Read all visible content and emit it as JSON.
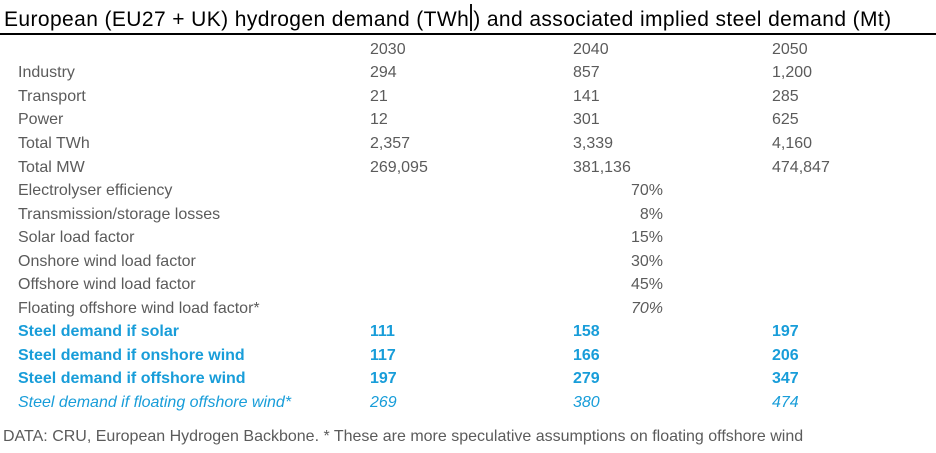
{
  "title": {
    "before_cursor": "European (EU27 + UK) hydrogen demand (TWh",
    "after_cursor": ") and associated implied steel demand (Mt)"
  },
  "colors": {
    "accent_blue": "#189dd9",
    "body_gray": "#5b5b5b",
    "title_black": "#000000"
  },
  "table": {
    "columns": [
      "2030",
      "2040",
      "2050"
    ],
    "demand_rows": [
      {
        "label": "Industry",
        "values": [
          "294",
          "857",
          "1,200"
        ]
      },
      {
        "label": "Transport",
        "values": [
          "21",
          "141",
          "285"
        ]
      },
      {
        "label": "Power",
        "values": [
          "12",
          "301",
          "625"
        ]
      },
      {
        "label": "Total TWh",
        "values": [
          "2,357",
          "3,339",
          "4,160"
        ]
      },
      {
        "label": "Total MW",
        "values": [
          "269,095",
          "381,136",
          "474,847"
        ]
      }
    ],
    "assumption_rows": [
      {
        "label": "Electrolyser efficiency",
        "value": "70%"
      },
      {
        "label": "Transmission/storage losses",
        "value": "8%"
      },
      {
        "label": "Solar load factor",
        "value": "15%"
      },
      {
        "label": "Onshore wind load factor",
        "value": "30%"
      },
      {
        "label": "Offshore wind load factor",
        "value": "45%"
      },
      {
        "label": "Floating offshore wind load factor*",
        "value": "70%"
      }
    ],
    "steel_rows": [
      {
        "label": "Steel demand if solar",
        "values": [
          "111",
          "158",
          "197"
        ]
      },
      {
        "label": "Steel demand if onshore wind",
        "values": [
          "117",
          "166",
          "206"
        ]
      },
      {
        "label": "Steel demand if offshore wind",
        "values": [
          "197",
          "279",
          "347"
        ]
      },
      {
        "label": "Steel demand if floating offshore wind*",
        "values": [
          "269",
          "380",
          "474"
        ]
      }
    ]
  },
  "footer": "DATA: CRU, European Hydrogen Backbone. * These are more speculative assumptions on floating offshore wind",
  "chart_data": {
    "type": "table",
    "title": "European (EU27 + UK) hydrogen demand (TWh) and associated implied steel demand (Mt)",
    "columns": [
      "2030",
      "2040",
      "2050"
    ],
    "hydrogen_demand_TWh": {
      "Industry": [
        294,
        857,
        1200
      ],
      "Transport": [
        21,
        141,
        285
      ],
      "Power": [
        12,
        301,
        625
      ],
      "Total TWh": [
        2357,
        3339,
        4160
      ],
      "Total MW": [
        269095,
        381136,
        474847
      ]
    },
    "assumptions": {
      "Electrolyser efficiency": "70%",
      "Transmission/storage losses": "8%",
      "Solar load factor": "15%",
      "Onshore wind load factor": "30%",
      "Offshore wind load factor": "45%",
      "Floating offshore wind load factor*": "70%"
    },
    "implied_steel_demand_Mt": {
      "Steel demand if solar": [
        111,
        158,
        197
      ],
      "Steel demand if onshore wind": [
        117,
        166,
        206
      ],
      "Steel demand if offshore wind": [
        197,
        279,
        347
      ],
      "Steel demand if floating offshore wind*": [
        269,
        380,
        474
      ]
    },
    "source": "DATA: CRU, European Hydrogen Backbone."
  }
}
